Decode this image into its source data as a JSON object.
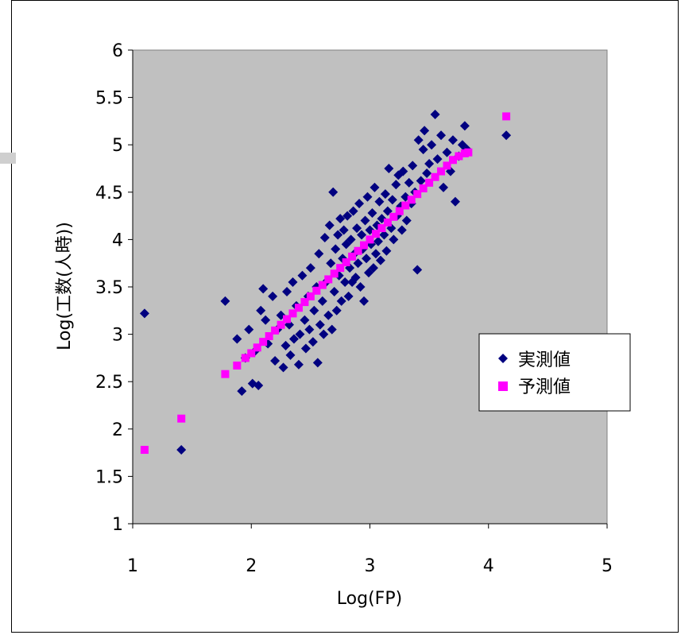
{
  "chart_data": {
    "type": "scatter",
    "xlabel": "Log(FP)",
    "ylabel": "Log(工数(人時))",
    "xlim": [
      1,
      5
    ],
    "ylim": [
      1,
      6
    ],
    "xticks": [
      "1",
      "2",
      "3",
      "4",
      "5"
    ],
    "yticks": [
      "1",
      "1.5",
      "2",
      "2.5",
      "3",
      "3.5",
      "4",
      "4.5",
      "5",
      "5.5",
      "6"
    ],
    "grid": false,
    "legend_position": "right",
    "plot_background": "#c0c0c0",
    "series": [
      {
        "name": "実測値",
        "marker": "diamond",
        "color": "#000080",
        "points": [
          [
            1.1,
            3.22
          ],
          [
            1.41,
            1.78
          ],
          [
            1.78,
            3.35
          ],
          [
            1.88,
            2.95
          ],
          [
            1.92,
            2.4
          ],
          [
            1.95,
            2.75
          ],
          [
            1.98,
            3.05
          ],
          [
            2.01,
            2.48
          ],
          [
            2.03,
            2.82
          ],
          [
            2.06,
            2.46
          ],
          [
            2.08,
            3.25
          ],
          [
            2.1,
            3.48
          ],
          [
            2.12,
            3.15
          ],
          [
            2.14,
            2.9
          ],
          [
            2.18,
            3.4
          ],
          [
            2.2,
            2.72
          ],
          [
            2.22,
            3.05
          ],
          [
            2.25,
            3.2
          ],
          [
            2.27,
            2.65
          ],
          [
            2.29,
            2.88
          ],
          [
            2.3,
            3.45
          ],
          [
            2.32,
            3.1
          ],
          [
            2.33,
            2.78
          ],
          [
            2.35,
            3.55
          ],
          [
            2.36,
            2.95
          ],
          [
            2.38,
            3.3
          ],
          [
            2.4,
            2.68
          ],
          [
            2.41,
            3.0
          ],
          [
            2.43,
            3.62
          ],
          [
            2.45,
            3.15
          ],
          [
            2.46,
            2.85
          ],
          [
            2.48,
            3.4
          ],
          [
            2.49,
            3.05
          ],
          [
            2.5,
            3.7
          ],
          [
            2.52,
            2.92
          ],
          [
            2.53,
            3.25
          ],
          [
            2.55,
            3.5
          ],
          [
            2.56,
            2.7
          ],
          [
            2.57,
            3.85
          ],
          [
            2.58,
            3.1
          ],
          [
            2.6,
            3.35
          ],
          [
            2.61,
            3.0
          ],
          [
            2.62,
            4.02
          ],
          [
            2.63,
            3.55
          ],
          [
            2.65,
            3.2
          ],
          [
            2.66,
            4.15
          ],
          [
            2.67,
            3.75
          ],
          [
            2.68,
            3.05
          ],
          [
            2.69,
            4.5
          ],
          [
            2.7,
            3.45
          ],
          [
            2.71,
            3.9
          ],
          [
            2.72,
            3.25
          ],
          [
            2.73,
            4.05
          ],
          [
            2.74,
            3.62
          ],
          [
            2.75,
            4.22
          ],
          [
            2.76,
            3.35
          ],
          [
            2.77,
            3.8
          ],
          [
            2.78,
            4.1
          ],
          [
            2.79,
            3.55
          ],
          [
            2.8,
            3.95
          ],
          [
            2.81,
            4.25
          ],
          [
            2.82,
            3.4
          ],
          [
            2.83,
            3.7
          ],
          [
            2.84,
            4.0
          ],
          [
            2.85,
            3.55
          ],
          [
            2.86,
            4.3
          ],
          [
            2.87,
            3.85
          ],
          [
            2.88,
            3.6
          ],
          [
            2.89,
            4.12
          ],
          [
            2.9,
            3.75
          ],
          [
            2.91,
            4.38
          ],
          [
            2.92,
            3.5
          ],
          [
            2.93,
            4.05
          ],
          [
            2.94,
            3.9
          ],
          [
            2.95,
            3.35
          ],
          [
            2.96,
            4.2
          ],
          [
            2.97,
            3.8
          ],
          [
            2.98,
            4.45
          ],
          [
            2.99,
            3.65
          ],
          [
            3.0,
            4.1
          ],
          [
            3.01,
            3.95
          ],
          [
            3.02,
            4.28
          ],
          [
            3.03,
            3.7
          ],
          [
            3.04,
            4.55
          ],
          [
            3.05,
            3.85
          ],
          [
            3.06,
            4.15
          ],
          [
            3.07,
            3.98
          ],
          [
            3.08,
            4.4
          ],
          [
            3.09,
            3.78
          ],
          [
            3.1,
            4.22
          ],
          [
            3.12,
            4.05
          ],
          [
            3.13,
            4.48
          ],
          [
            3.14,
            3.88
          ],
          [
            3.15,
            4.3
          ],
          [
            3.16,
            4.75
          ],
          [
            3.18,
            4.12
          ],
          [
            3.19,
            4.42
          ],
          [
            3.2,
            4.0
          ],
          [
            3.22,
            4.58
          ],
          [
            3.23,
            4.25
          ],
          [
            3.24,
            4.68
          ],
          [
            3.26,
            4.35
          ],
          [
            3.27,
            4.1
          ],
          [
            3.28,
            4.72
          ],
          [
            3.3,
            4.45
          ],
          [
            3.31,
            4.2
          ],
          [
            3.33,
            4.6
          ],
          [
            3.35,
            4.38
          ],
          [
            3.36,
            4.78
          ],
          [
            3.38,
            4.5
          ],
          [
            3.4,
            3.68
          ],
          [
            3.41,
            5.05
          ],
          [
            3.43,
            4.62
          ],
          [
            3.45,
            4.95
          ],
          [
            3.46,
            5.15
          ],
          [
            3.48,
            4.7
          ],
          [
            3.5,
            4.8
          ],
          [
            3.52,
            5.0
          ],
          [
            3.55,
            5.32
          ],
          [
            3.57,
            4.85
          ],
          [
            3.6,
            5.1
          ],
          [
            3.62,
            4.55
          ],
          [
            3.65,
            4.92
          ],
          [
            3.68,
            4.72
          ],
          [
            3.7,
            5.05
          ],
          [
            3.72,
            4.4
          ],
          [
            3.75,
            4.88
          ],
          [
            3.78,
            5.0
          ],
          [
            3.8,
            5.2
          ],
          [
            3.82,
            4.95
          ],
          [
            4.15,
            5.1
          ]
        ]
      },
      {
        "name": "予測値",
        "marker": "square",
        "color": "#ff00ff",
        "points": [
          [
            1.1,
            1.78
          ],
          [
            1.41,
            2.11
          ],
          [
            1.78,
            2.58
          ],
          [
            1.88,
            2.67
          ],
          [
            1.95,
            2.75
          ],
          [
            2.0,
            2.8
          ],
          [
            2.05,
            2.86
          ],
          [
            2.1,
            2.92
          ],
          [
            2.15,
            2.98
          ],
          [
            2.2,
            3.04
          ],
          [
            2.25,
            3.1
          ],
          [
            2.3,
            3.16
          ],
          [
            2.35,
            3.22
          ],
          [
            2.4,
            3.28
          ],
          [
            2.45,
            3.34
          ],
          [
            2.5,
            3.4
          ],
          [
            2.55,
            3.46
          ],
          [
            2.6,
            3.52
          ],
          [
            2.65,
            3.58
          ],
          [
            2.7,
            3.64
          ],
          [
            2.75,
            3.7
          ],
          [
            2.8,
            3.76
          ],
          [
            2.85,
            3.82
          ],
          [
            2.9,
            3.88
          ],
          [
            2.95,
            3.94
          ],
          [
            3.0,
            4.0
          ],
          [
            3.05,
            4.06
          ],
          [
            3.1,
            4.12
          ],
          [
            3.15,
            4.18
          ],
          [
            3.2,
            4.24
          ],
          [
            3.25,
            4.3
          ],
          [
            3.3,
            4.36
          ],
          [
            3.35,
            4.42
          ],
          [
            3.4,
            4.48
          ],
          [
            3.45,
            4.54
          ],
          [
            3.5,
            4.6
          ],
          [
            3.55,
            4.66
          ],
          [
            3.6,
            4.72
          ],
          [
            3.65,
            4.78
          ],
          [
            3.7,
            4.84
          ],
          [
            3.75,
            4.88
          ],
          [
            3.8,
            4.91
          ],
          [
            3.83,
            4.92
          ],
          [
            4.15,
            5.3
          ]
        ]
      }
    ]
  }
}
